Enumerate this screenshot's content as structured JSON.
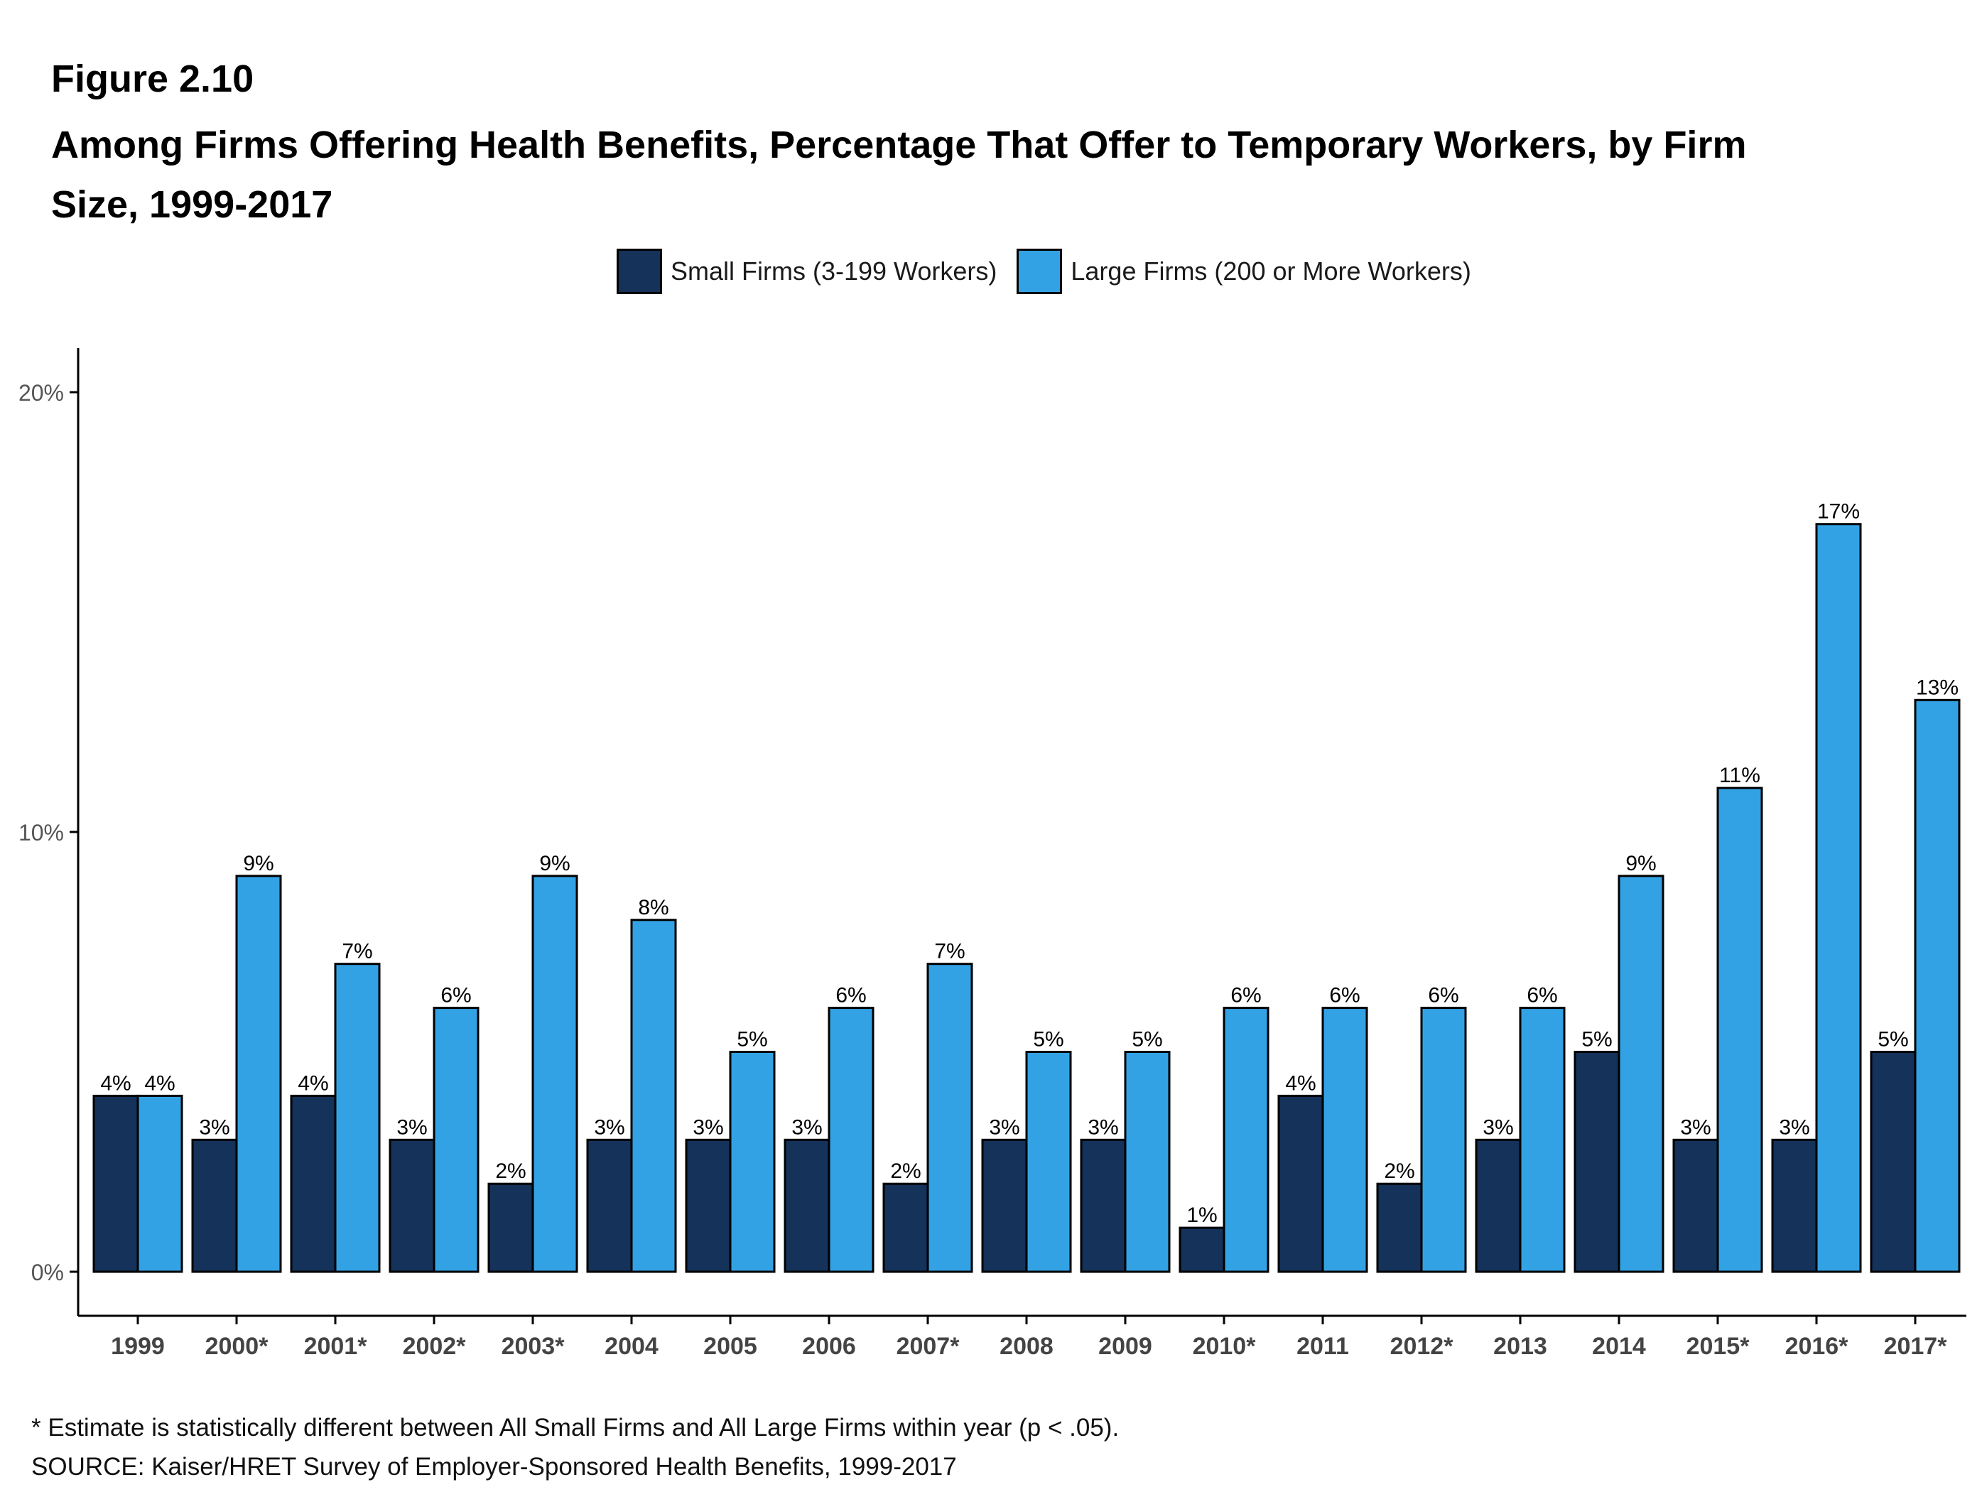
{
  "figure_label": "Figure 2.10",
  "chart_data": {
    "type": "bar",
    "title": "Among Firms Offering Health Benefits, Percentage That Offer to Temporary Workers, by Firm Size, 1999-2017",
    "xlabel": "",
    "ylabel": "",
    "ylim": [
      0,
      20
    ],
    "yticks": [
      0,
      10,
      20
    ],
    "ytick_labels": [
      "0%",
      "10%",
      "20%"
    ],
    "grid": false,
    "legend_position": "top-center",
    "categories": [
      "1999",
      "2000*",
      "2001*",
      "2002*",
      "2003*",
      "2004",
      "2005",
      "2006",
      "2007*",
      "2008",
      "2009",
      "2010*",
      "2011",
      "2012*",
      "2013",
      "2014",
      "2015*",
      "2016*",
      "2017*"
    ],
    "series": [
      {
        "name": "Small Firms (3-199 Workers)",
        "color": "#14325a",
        "values": [
          4,
          3,
          4,
          3,
          2,
          3,
          3,
          3,
          2,
          3,
          3,
          1,
          4,
          2,
          3,
          5,
          3,
          3,
          5
        ],
        "labels": [
          "4%",
          "3%",
          "4%",
          "3%",
          "2%",
          "3%",
          "3%",
          "3%",
          "2%",
          "3%",
          "3%",
          "1%",
          "4%",
          "2%",
          "3%",
          "5%",
          "3%",
          "3%",
          "5%"
        ]
      },
      {
        "name": "Large Firms (200 or More Workers)",
        "color": "#33a2e5",
        "values": [
          4,
          9,
          7,
          6,
          9,
          8,
          5,
          6,
          7,
          5,
          5,
          6,
          6,
          6,
          6,
          9,
          11,
          17,
          13
        ],
        "labels": [
          "4%",
          "9%",
          "7%",
          "6%",
          "9%",
          "8%",
          "5%",
          "6%",
          "7%",
          "5%",
          "5%",
          "6%",
          "6%",
          "6%",
          "6%",
          "9%",
          "11%",
          "17%",
          "13%"
        ]
      }
    ]
  },
  "footnote": "* Estimate is statistically different between All Small Firms and All Large Firms within year (p < .05).",
  "source": "SOURCE: Kaiser/HRET Survey of Employer-Sponsored Health Benefits, 1999-2017"
}
